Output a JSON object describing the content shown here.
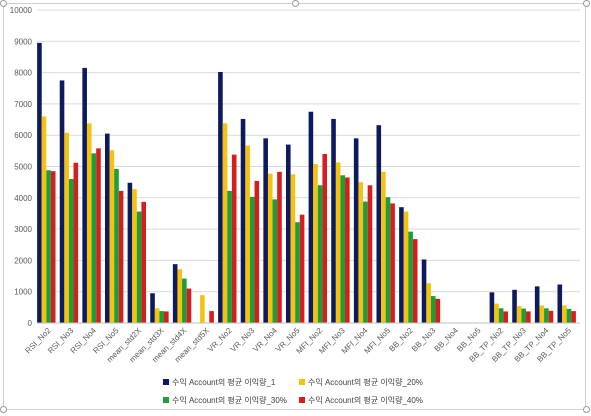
{
  "chart_data": {
    "type": "bar",
    "title": "",
    "xlabel": "",
    "ylabel": "",
    "ylim": [
      0,
      10000
    ],
    "yticks": [
      0,
      1000,
      2000,
      3000,
      4000,
      5000,
      6000,
      7000,
      8000,
      9000,
      10000
    ],
    "grid": true,
    "legend_position": "bottom",
    "categories": [
      "RSI_No2",
      "RSI_No3",
      "RSI_No4",
      "RSI_No5",
      "mean_std2X",
      "mean_std3X",
      "mean_std4X",
      "mean_std5X",
      "VR_No2",
      "VR_No3",
      "VR_No4",
      "VR_No5",
      "MFI_No2",
      "MFI_No3",
      "MFI_No4",
      "MFI_No5",
      "BB_No2",
      "BB_No3",
      "BB_No4",
      "BB_No5",
      "BB_TP_No2",
      "BB_TP_No3",
      "BB_TP_No4",
      "BB_TP_No5"
    ],
    "series": [
      {
        "name": "수익 Account의 평균 이익량_1",
        "color": "#0d1b5e",
        "values": [
          8950,
          7750,
          8150,
          6050,
          4480,
          950,
          1880,
          0,
          8020,
          6520,
          5900,
          5700,
          6750,
          6520,
          5900,
          6320,
          3700,
          2030,
          0,
          0,
          980,
          1060,
          1170,
          1230
        ]
      },
      {
        "name": "수익 Account의 평균 이익량_20%",
        "color": "#f5c211",
        "values": [
          6600,
          6080,
          6380,
          5520,
          4280,
          470,
          1720,
          890,
          6380,
          5670,
          4770,
          4750,
          5080,
          5130,
          4500,
          4830,
          3560,
          1270,
          0,
          0,
          620,
          540,
          560,
          560
        ]
      },
      {
        "name": "수익 Account의 평균 이익량_30%",
        "color": "#1e9e3a",
        "values": [
          4880,
          4600,
          5420,
          4920,
          3560,
          380,
          1420,
          0,
          4220,
          4030,
          3950,
          3220,
          4400,
          4720,
          3880,
          4020,
          2920,
          860,
          0,
          0,
          470,
          460,
          470,
          450
        ]
      },
      {
        "name": "수익 Account의 평균 이익량_40%",
        "color": "#d41f1f",
        "values": [
          4850,
          5120,
          5580,
          4220,
          3870,
          370,
          1100,
          380,
          5380,
          4540,
          4830,
          3460,
          5400,
          4650,
          4400,
          3820,
          2680,
          770,
          0,
          0,
          370,
          370,
          390,
          380
        ]
      }
    ]
  }
}
